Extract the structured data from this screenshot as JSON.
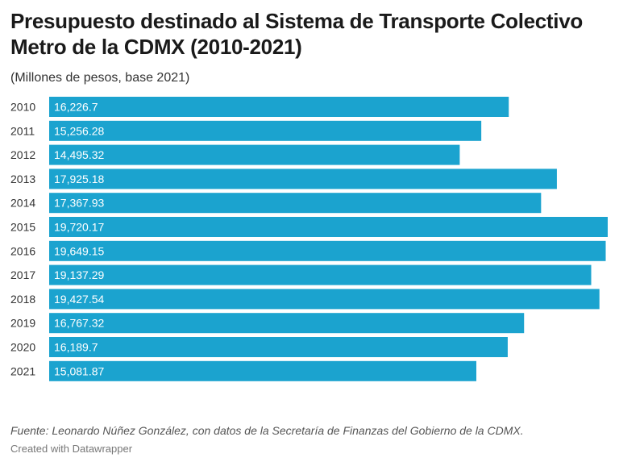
{
  "chart_data": {
    "type": "bar",
    "orientation": "horizontal",
    "title": "Presupuesto destinado al Sistema de Transporte Colectivo Metro de la CDMX (2010-2021)",
    "subtitle": "(Millones de pesos, base 2021)",
    "categories": [
      "2010",
      "2011",
      "2012",
      "2013",
      "2014",
      "2015",
      "2016",
      "2017",
      "2018",
      "2019",
      "2020",
      "2021"
    ],
    "values": [
      16226.7,
      15256.28,
      14495.32,
      17925.18,
      17367.93,
      19720.17,
      19649.15,
      19137.29,
      19427.54,
      16767.32,
      16189.7,
      15081.87
    ],
    "value_labels": [
      "16,226.7",
      "15,256.28",
      "14,495.32",
      "17,925.18",
      "17,367.93",
      "19,720.17",
      "19,649.15",
      "19,137.29",
      "19,427.54",
      "16,767.32",
      "16,189.7",
      "15,081.87"
    ],
    "xlim": [
      0,
      19720.17
    ],
    "bar_color": "#1ba3cf",
    "grid": false
  },
  "source": "Fuente: Leonardo Núñez González, con datos de la Secretaría de Finanzas del Gobierno de la CDMX.",
  "credit": "Created with Datawrapper"
}
